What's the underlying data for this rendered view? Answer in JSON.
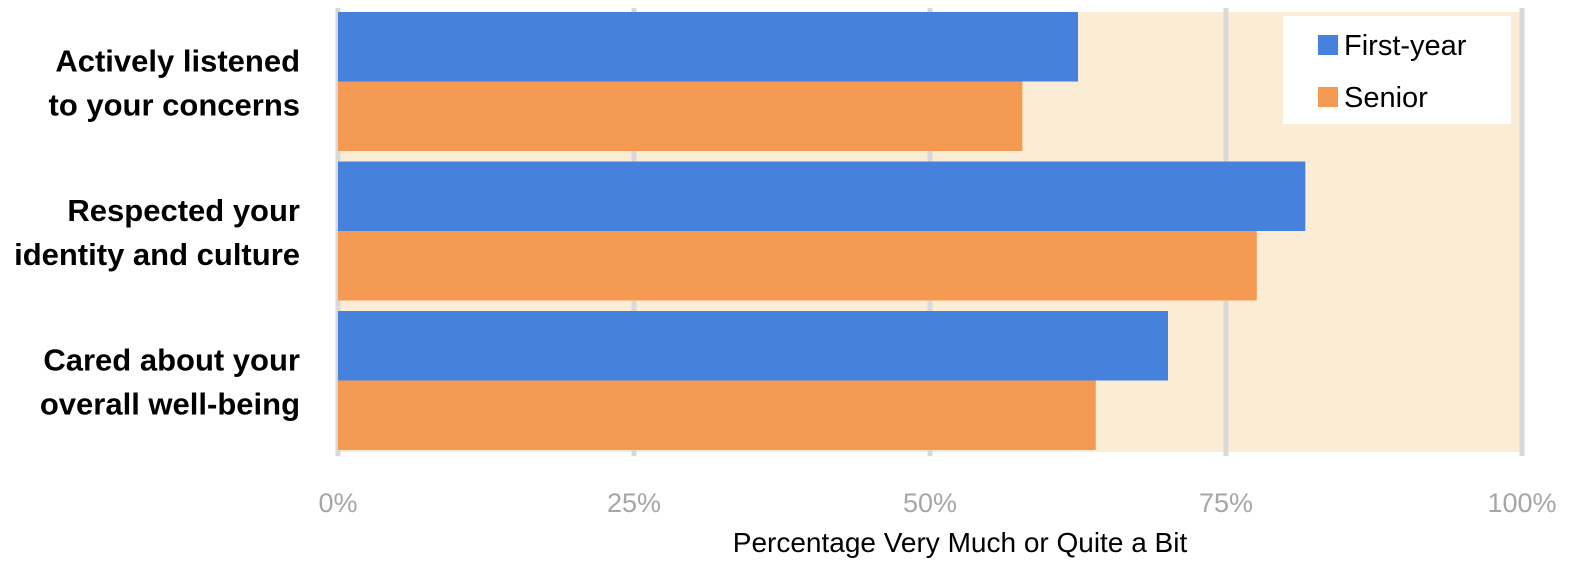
{
  "chart_data": {
    "type": "bar",
    "orientation": "horizontal",
    "categories": [
      [
        "Actively listened",
        "to your concerns"
      ],
      [
        "Respected your",
        "identity and culture"
      ],
      [
        "Cared about your",
        "overall well-being"
      ]
    ],
    "series": [
      {
        "name": "First-year",
        "color": "#4682DC",
        "values": [
          62.5,
          81.7,
          70.1
        ]
      },
      {
        "name": "Senior",
        "color": "#F59A52",
        "values": [
          57.8,
          77.6,
          64.0
        ]
      }
    ],
    "xlabel": "Percentage Very Much or Quite a Bit",
    "xlim": [
      0,
      100
    ],
    "xticks": [
      0,
      25,
      50,
      75,
      100
    ],
    "xtick_labels": [
      "0%",
      "25%",
      "50%",
      "75%",
      "100%"
    ],
    "grid": true,
    "legend_position": "top-right",
    "plot_background": "#FBEDD5",
    "grid_color": "#D9D9D9"
  }
}
